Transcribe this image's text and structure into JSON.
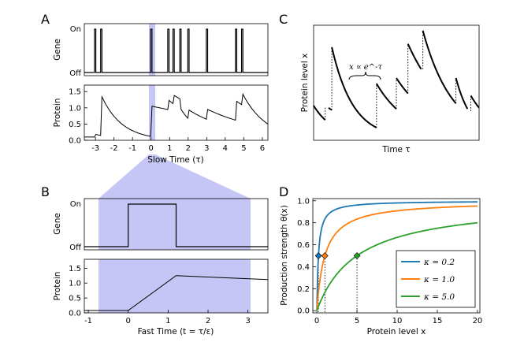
{
  "figure": {
    "panels": [
      {
        "id": "A",
        "label": "A"
      },
      {
        "id": "B",
        "label": "B"
      },
      {
        "id": "C",
        "label": "C"
      },
      {
        "id": "D",
        "label": "D"
      }
    ]
  },
  "chart_data": [
    {
      "panel": "A",
      "subplot": "gene",
      "type": "line",
      "ylabel": "Gene",
      "ytick_labels": [
        "Off",
        "On"
      ],
      "xlim": [
        -3.6,
        6.3
      ],
      "on_intervals": [
        [
          -3.05,
          -2.98
        ],
        [
          -2.72,
          -2.65
        ],
        [
          -0.02,
          0.05
        ],
        [
          0.9,
          0.97
        ],
        [
          1.18,
          1.25
        ],
        [
          1.55,
          1.62
        ],
        [
          1.98,
          2.05
        ],
        [
          2.98,
          3.05
        ],
        [
          4.55,
          4.62
        ],
        [
          4.88,
          4.95
        ]
      ]
    },
    {
      "panel": "A",
      "subplot": "protein",
      "type": "line",
      "ylabel": "Protein",
      "xlabel": "Slow Time (τ)",
      "xlim": [
        -3.6,
        6.3
      ],
      "ylim": [
        0,
        1.7
      ],
      "xticks": [
        -3,
        -2,
        -1,
        0,
        1,
        2,
        3,
        4,
        5,
        6
      ],
      "xtick_labels": [
        "-3",
        "-2",
        "-1",
        "0",
        "1",
        "2",
        "3",
        "4",
        "5",
        "6"
      ],
      "yticks": [
        0,
        0.5,
        1.0,
        1.5
      ],
      "ytick_labels": [
        "0.0",
        "0.5",
        "1.0",
        "1.5"
      ],
      "x": [
        -3.05,
        -2.98,
        -2.72,
        -2.65,
        -0.02,
        0.05,
        0.9,
        0.97,
        1.18,
        1.25,
        1.55,
        1.62,
        1.98,
        2.05,
        2.98,
        3.05,
        4.55,
        4.62,
        4.88,
        4.95,
        6.3
      ],
      "y": [
        0.1,
        0.18,
        0.15,
        1.34,
        0.12,
        1.05,
        0.95,
        1.23,
        1.13,
        1.38,
        1.28,
        0.95,
        0.68,
        0.93,
        0.65,
        0.95,
        0.62,
        1.2,
        1.1,
        1.42,
        0.5
      ]
    },
    {
      "panel": "B",
      "subplot": "gene",
      "type": "line",
      "ylabel": "Gene",
      "ytick_labels": [
        "Off",
        "On"
      ],
      "xlim": [
        -1.1,
        3.5
      ],
      "on_intervals": [
        [
          0,
          1.2
        ]
      ]
    },
    {
      "panel": "B",
      "subplot": "protein",
      "type": "line",
      "ylabel": "Protein",
      "xlabel": "Fast Time (t = τ/ε)",
      "xlim": [
        -1.1,
        3.5
      ],
      "ylim": [
        0,
        1.8
      ],
      "xticks": [
        -1,
        0,
        1,
        2,
        3
      ],
      "xtick_labels": [
        "-1",
        "0",
        "1",
        "2",
        "3"
      ],
      "yticks": [
        0,
        0.5,
        1.0,
        1.5
      ],
      "ytick_labels": [
        "0.0",
        "0.5",
        "1.0",
        "1.5"
      ],
      "x": [
        -1.1,
        0,
        1.2,
        3.5
      ],
      "y": [
        0.08,
        0.08,
        1.25,
        1.12
      ]
    },
    {
      "panel": "C",
      "type": "line",
      "ylabel": "Protein level x",
      "xlabel": "Time τ",
      "annotation": "x ∝ e^-τ",
      "traces": [
        {
          "t_start": 0.0,
          "t_end": 0.07,
          "x_start": 0.3,
          "x_end": 0.17
        },
        {
          "t_start": 0.09,
          "t_end": 0.11,
          "x_start": 0.28,
          "x_end": 0.26
        },
        {
          "t_start": 0.11,
          "t_end": 0.38,
          "x_start": 0.83,
          "x_end": 0.1
        },
        {
          "t_start": 0.38,
          "t_end": 0.5,
          "x_start": 0.5,
          "x_end": 0.27
        },
        {
          "t_start": 0.5,
          "t_end": 0.57,
          "x_start": 0.55,
          "x_end": 0.41
        },
        {
          "t_start": 0.57,
          "t_end": 0.65,
          "x_start": 0.86,
          "x_end": 0.63
        },
        {
          "t_start": 0.66,
          "t_end": 0.86,
          "x_start": 0.98,
          "x_end": 0.32
        },
        {
          "t_start": 0.86,
          "t_end": 0.93,
          "x_start": 0.55,
          "x_end": 0.27
        },
        {
          "t_start": 0.95,
          "t_end": 1.0,
          "x_start": 0.39,
          "x_end": 0.28
        }
      ],
      "jumps": [
        {
          "t": 0.07,
          "from": 0.17,
          "to": 0.28
        },
        {
          "t": 0.11,
          "from": 0.26,
          "to": 0.83
        },
        {
          "t": 0.38,
          "from": 0.1,
          "to": 0.5
        },
        {
          "t": 0.5,
          "from": 0.27,
          "to": 0.55
        },
        {
          "t": 0.57,
          "from": 0.41,
          "to": 0.86
        },
        {
          "t": 0.66,
          "from": 0.63,
          "to": 0.98
        },
        {
          "t": 0.86,
          "from": 0.32,
          "to": 0.55
        },
        {
          "t": 0.95,
          "from": 0.25,
          "to": 0.39
        }
      ]
    },
    {
      "panel": "D",
      "type": "line",
      "ylabel": "Production strength θ(x)",
      "xlabel": "Protein level x",
      "xlim": [
        -0.5,
        20.3
      ],
      "ylim": [
        -0.02,
        1.02
      ],
      "xticks": [
        0,
        5,
        10,
        15,
        20
      ],
      "xtick_labels": [
        "0",
        "5",
        "10",
        "15",
        "20"
      ],
      "yticks": [
        0.0,
        0.2,
        0.4,
        0.6,
        0.8,
        1.0
      ],
      "ytick_labels": [
        "0.0",
        "0.2",
        "0.4",
        "0.6",
        "0.8",
        "1.0"
      ],
      "legend_position": "lower-right",
      "series": [
        {
          "name": "κ = 0.2",
          "kappa": 0.2,
          "color": "#1f77b4"
        },
        {
          "name": "κ = 1.0",
          "kappa": 1.0,
          "color": "#ff7f0e"
        },
        {
          "name": "κ = 5.0",
          "kappa": 5.0,
          "color": "#2ca02c"
        }
      ]
    }
  ]
}
